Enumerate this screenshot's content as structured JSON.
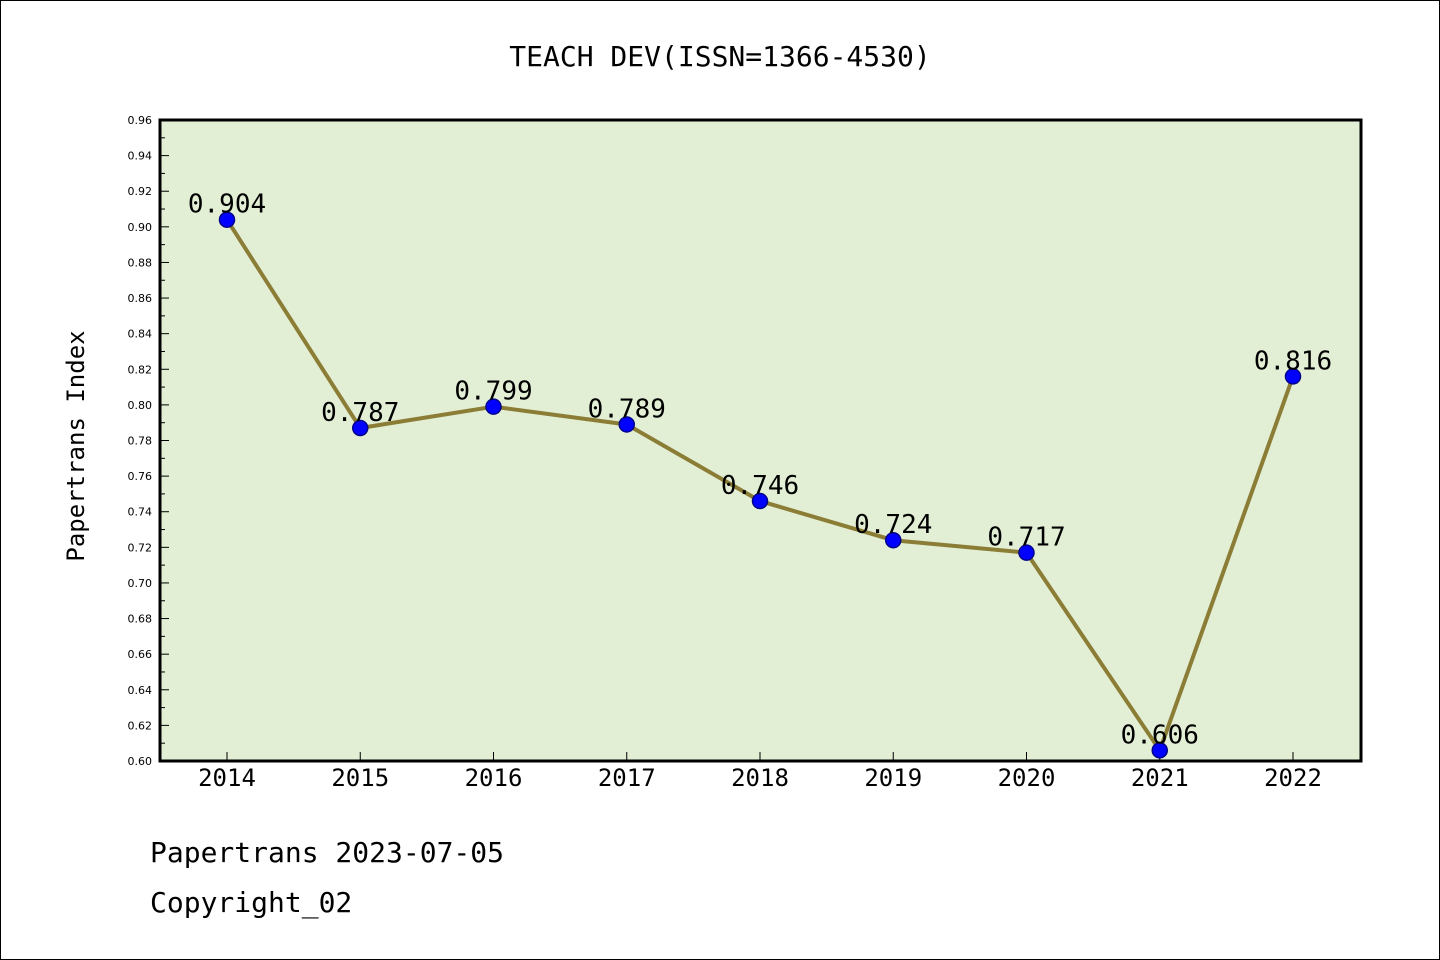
{
  "chart_data": {
    "type": "line",
    "title": "TEACH DEV(ISSN=1366-4530)",
    "xlabel": "",
    "ylabel": "Papertrans Index",
    "categories": [
      "2014",
      "2015",
      "2016",
      "2017",
      "2018",
      "2019",
      "2020",
      "2021",
      "2022"
    ],
    "series": [
      {
        "values": [
          0.904,
          0.787,
          0.799,
          0.789,
          0.746,
          0.724,
          0.717,
          0.606,
          0.816
        ],
        "labels": [
          "0.904",
          "0.787",
          "0.799",
          "0.789",
          "0.746",
          "0.724",
          "0.717",
          "0.606",
          "0.816"
        ]
      }
    ],
    "ylim": [
      0.6,
      0.96
    ],
    "yticks": [
      "0.60",
      "0.62",
      "0.64",
      "0.66",
      "0.68",
      "0.70",
      "0.72",
      "0.74",
      "0.76",
      "0.78",
      "0.80",
      "0.82",
      "0.84",
      "0.86",
      "0.88",
      "0.90",
      "0.92",
      "0.94",
      "0.96"
    ],
    "grid": false,
    "colors": {
      "plot_background": "#e2efd5",
      "line": "#8b7d35",
      "marker_fill": "#0000ff",
      "marker_edge": "#00008b"
    }
  },
  "footer": {
    "date_line": "Papertrans 2023-07-05",
    "copyright": "Copyright_02"
  }
}
